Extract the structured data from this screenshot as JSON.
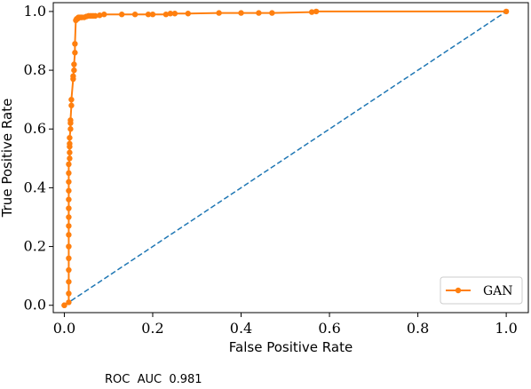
{
  "chart_data": {
    "type": "line",
    "title": "",
    "xlabel": "False Positive Rate",
    "ylabel": "True Positive Rate",
    "xlim": [
      -0.025,
      1.05
    ],
    "ylim": [
      -0.025,
      1.03
    ],
    "x_ticks": [
      0.0,
      0.2,
      0.4,
      0.6,
      0.8,
      1.0
    ],
    "y_ticks": [
      0.0,
      0.2,
      0.4,
      0.6,
      0.8,
      1.0
    ],
    "x_tick_labels": [
      "0.0",
      "0.2",
      "0.4",
      "0.6",
      "0.8",
      "1.0"
    ],
    "y_tick_labels": [
      "0.0",
      "0.2",
      "0.4",
      "0.6",
      "0.8",
      "1.0"
    ],
    "grid": false,
    "legend_position": "bottom-right",
    "series": [
      {
        "name": "GAN",
        "color": "#ff7f0e",
        "marker": "circle",
        "x": [
          0.0,
          0.0,
          0.01,
          0.01,
          0.01,
          0.01,
          0.01,
          0.01,
          0.01,
          0.01,
          0.01,
          0.01,
          0.01,
          0.01,
          0.01,
          0.01,
          0.01,
          0.012,
          0.012,
          0.012,
          0.012,
          0.012,
          0.014,
          0.014,
          0.014,
          0.016,
          0.016,
          0.02,
          0.02,
          0.022,
          0.022,
          0.024,
          0.024,
          0.026,
          0.028,
          0.03,
          0.032,
          0.034,
          0.036,
          0.038,
          0.04,
          0.045,
          0.05,
          0.055,
          0.06,
          0.065,
          0.07,
          0.08,
          0.09,
          0.13,
          0.16,
          0.19,
          0.2,
          0.23,
          0.24,
          0.25,
          0.28,
          0.35,
          0.4,
          0.44,
          0.47,
          0.56,
          0.57,
          1.0
        ],
        "y": [
          0.0,
          0.0,
          0.01,
          0.04,
          0.08,
          0.12,
          0.16,
          0.2,
          0.24,
          0.27,
          0.3,
          0.33,
          0.36,
          0.39,
          0.42,
          0.45,
          0.48,
          0.5,
          0.52,
          0.54,
          0.55,
          0.57,
          0.6,
          0.62,
          0.63,
          0.68,
          0.7,
          0.77,
          0.78,
          0.8,
          0.82,
          0.86,
          0.89,
          0.97,
          0.975,
          0.975,
          0.98,
          0.98,
          0.98,
          0.98,
          0.98,
          0.98,
          0.983,
          0.985,
          0.985,
          0.985,
          0.985,
          0.987,
          0.99,
          0.99,
          0.99,
          0.99,
          0.99,
          0.99,
          0.993,
          0.993,
          0.993,
          0.995,
          0.995,
          0.995,
          0.995,
          0.998,
          1.0,
          1.0
        ]
      }
    ],
    "reference_line": {
      "x": [
        0.0,
        1.0
      ],
      "y": [
        0.0,
        1.0
      ],
      "color": "#1f77b4",
      "style": "dashed"
    },
    "annotation": "ROC  AUC  0.981"
  }
}
